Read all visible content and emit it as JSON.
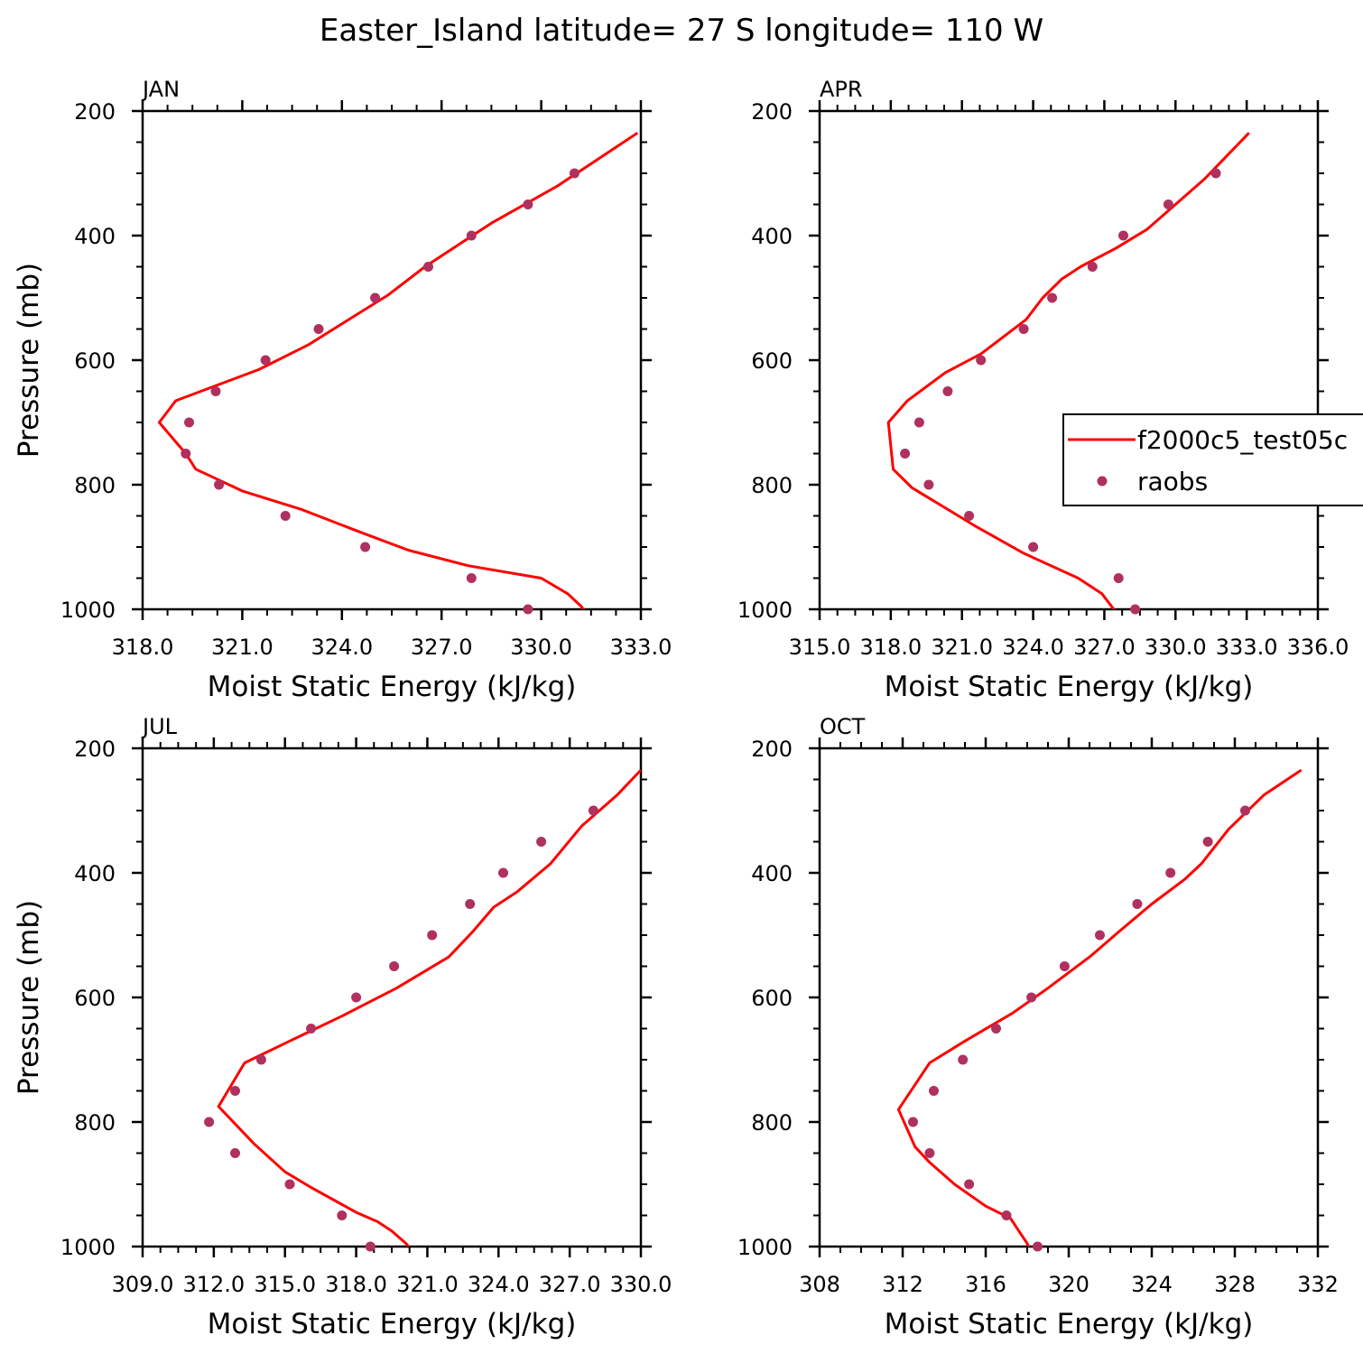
{
  "figure": {
    "title": "Easter_Island  latitude= 27 S longitude= 110 W"
  },
  "legend": {
    "model_label": "f2000c5_test05c",
    "obs_label": "raobs",
    "placement": "right of APR panel, partially clipped"
  },
  "colors": {
    "model_line": "#ff0000",
    "obs_marker": "#b03060",
    "axis": "#000000",
    "background": "#ffffff"
  },
  "chart_data": [
    {
      "type": "line",
      "panel": "JAN",
      "title": "JAN",
      "xlabel": "Moist Static Energy (kJ/kg)",
      "ylabel": "Pressure (mb)",
      "xlim": [
        318.0,
        333.0
      ],
      "ylim": [
        1000,
        200
      ],
      "y_reversed": true,
      "xticks": [
        318.0,
        321.0,
        324.0,
        327.0,
        330.0,
        333.0
      ],
      "xtick_labels": [
        "318.0",
        "321.0",
        "324.0",
        "327.0",
        "330.0",
        "333.0"
      ],
      "yticks": [
        200,
        400,
        600,
        800,
        1000
      ],
      "ytick_labels": [
        "200",
        "400",
        "600",
        "800",
        "1000"
      ],
      "series": [
        {
          "name": "f2000c5_test05c",
          "kind": "line",
          "x": [
            331.4,
            331.2,
            330.8,
            330.0,
            327.8,
            326.0,
            324.5,
            322.8,
            321.0,
            319.6,
            319.3,
            318.5,
            319.0,
            321.5,
            323.0,
            324.2,
            325.4,
            326.5,
            328.5,
            330.5,
            332.9
          ],
          "y": [
            1010,
            995,
            975,
            950,
            930,
            905,
            875,
            840,
            810,
            775,
            750,
            700,
            665,
            615,
            575,
            535,
            495,
            450,
            380,
            320,
            235
          ]
        },
        {
          "name": "raobs",
          "kind": "scatter",
          "x": [
            329.6,
            327.9,
            324.7,
            322.3,
            320.3,
            319.3,
            319.4,
            320.2,
            321.7,
            323.3,
            325.0,
            326.6,
            327.9,
            329.6,
            331.0
          ],
          "y": [
            1000,
            950,
            900,
            850,
            800,
            750,
            700,
            650,
            600,
            550,
            500,
            450,
            400,
            350,
            300
          ]
        }
      ]
    },
    {
      "type": "line",
      "panel": "APR",
      "title": "APR",
      "xlabel": "Moist Static Energy (kJ/kg)",
      "ylabel": "",
      "xlim": [
        315.0,
        336.0
      ],
      "ylim": [
        1000,
        200
      ],
      "y_reversed": true,
      "xticks": [
        315.0,
        318.0,
        321.0,
        324.0,
        327.0,
        330.0,
        333.0,
        336.0
      ],
      "xtick_labels": [
        "315.0",
        "318.0",
        "321.0",
        "324.0",
        "327.0",
        "330.0",
        "333.0",
        "336.0"
      ],
      "yticks": [
        200,
        400,
        600,
        800,
        1000
      ],
      "ytick_labels": [
        "200",
        "400",
        "600",
        "800",
        "1000"
      ],
      "series": [
        {
          "name": "f2000c5_test05c",
          "kind": "line",
          "x": [
            327.6,
            327.3,
            326.9,
            325.9,
            323.6,
            321.5,
            320.2,
            318.9,
            318.1,
            317.9,
            318.7,
            320.3,
            321.8,
            323.7,
            324.4,
            325.2,
            326.0,
            327.5,
            328.8,
            331.2,
            333.1
          ],
          "y": [
            1010,
            995,
            975,
            950,
            910,
            865,
            835,
            805,
            775,
            700,
            665,
            620,
            590,
            535,
            500,
            470,
            450,
            420,
            390,
            310,
            235
          ]
        },
        {
          "name": "raobs",
          "kind": "scatter",
          "x": [
            328.3,
            327.6,
            324.0,
            321.3,
            319.6,
            318.6,
            319.2,
            320.4,
            321.8,
            323.6,
            324.8,
            326.5,
            327.8,
            329.7,
            331.7
          ],
          "y": [
            1000,
            950,
            900,
            850,
            800,
            750,
            700,
            650,
            600,
            550,
            500,
            450,
            400,
            350,
            300
          ]
        }
      ]
    },
    {
      "type": "line",
      "panel": "JUL",
      "title": "JUL",
      "xlabel": "Moist Static Energy (kJ/kg)",
      "ylabel": "Pressure (mb)",
      "xlim": [
        309.0,
        330.0
      ],
      "ylim": [
        1000,
        200
      ],
      "y_reversed": true,
      "xticks": [
        309.0,
        312.0,
        315.0,
        318.0,
        321.0,
        324.0,
        327.0,
        330.0
      ],
      "xtick_labels": [
        "309.0",
        "312.0",
        "315.0",
        "318.0",
        "321.0",
        "324.0",
        "327.0",
        "330.0"
      ],
      "yticks": [
        200,
        400,
        600,
        800,
        1000
      ],
      "ytick_labels": [
        "200",
        "400",
        "600",
        "800",
        "1000"
      ],
      "series": [
        {
          "name": "f2000c5_test05c",
          "kind": "line",
          "x": [
            320.4,
            320.1,
            319.5,
            318.9,
            318.0,
            316.1,
            315.0,
            313.7,
            312.2,
            313.3,
            315.2,
            317.4,
            319.7,
            321.9,
            322.9,
            323.8,
            324.8,
            326.2,
            327.5,
            329.0,
            330.0
          ],
          "y": [
            1010,
            995,
            975,
            960,
            945,
            905,
            880,
            835,
            775,
            705,
            670,
            630,
            585,
            535,
            495,
            455,
            430,
            385,
            325,
            275,
            235
          ]
        },
        {
          "name": "raobs",
          "kind": "scatter",
          "x": [
            318.6,
            317.4,
            315.2,
            312.9,
            311.8,
            312.9,
            314.0,
            316.1,
            318.0,
            319.6,
            321.2,
            322.8,
            324.2,
            325.8,
            328.0
          ],
          "y": [
            1000,
            950,
            900,
            850,
            800,
            750,
            700,
            650,
            600,
            550,
            500,
            450,
            400,
            350,
            300
          ]
        }
      ]
    },
    {
      "type": "line",
      "panel": "OCT",
      "title": "OCT",
      "xlabel": "Moist Static Energy (kJ/kg)",
      "ylabel": "",
      "xlim": [
        308,
        332
      ],
      "ylim": [
        1000,
        200
      ],
      "y_reversed": true,
      "xticks": [
        308,
        312,
        316,
        320,
        324,
        328,
        332
      ],
      "xtick_labels": [
        "308",
        "312",
        "316",
        "320",
        "324",
        "328",
        "332"
      ],
      "yticks": [
        200,
        400,
        600,
        800,
        1000
      ],
      "ytick_labels": [
        "200",
        "400",
        "600",
        "800",
        "1000"
      ],
      "series": [
        {
          "name": "f2000c5_test05c",
          "kind": "line",
          "x": [
            318.2,
            318.0,
            317.6,
            317.2,
            316.0,
            314.5,
            313.3,
            312.6,
            311.8,
            313.3,
            315.0,
            317.3,
            319.0,
            321.0,
            322.4,
            324.0,
            325.6,
            326.4,
            327.7,
            329.4,
            331.2
          ],
          "y": [
            1010,
            995,
            975,
            955,
            935,
            900,
            865,
            840,
            780,
            705,
            670,
            625,
            585,
            535,
            495,
            450,
            410,
            385,
            330,
            275,
            235
          ]
        },
        {
          "name": "raobs",
          "kind": "scatter",
          "x": [
            318.5,
            317.0,
            315.2,
            313.3,
            312.5,
            313.5,
            314.9,
            316.5,
            318.2,
            319.8,
            321.5,
            323.3,
            324.9,
            326.7,
            328.5
          ],
          "y": [
            1000,
            950,
            900,
            850,
            800,
            750,
            700,
            650,
            600,
            550,
            500,
            450,
            400,
            350,
            300
          ]
        }
      ]
    }
  ]
}
